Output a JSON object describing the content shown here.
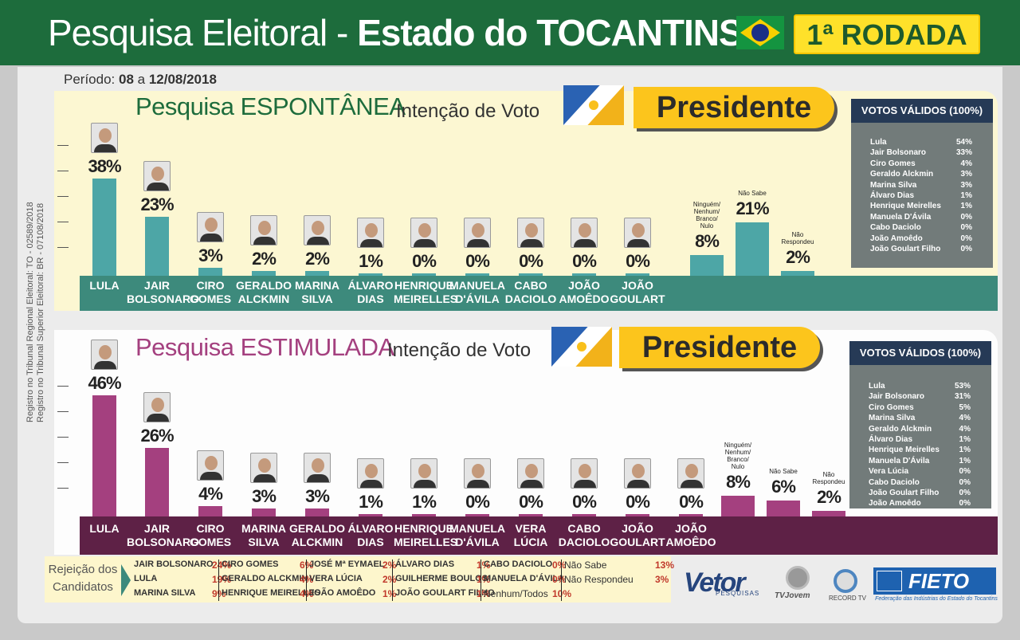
{
  "header": {
    "title_a": "Pesquisa Eleitoral - ",
    "title_b": "Estado do  TOCANTINS",
    "round": "1ª RODADA"
  },
  "periodo": {
    "label": "Período: ",
    "value": "08",
    "mid": " a ",
    "end": "12/08/2018"
  },
  "registro": {
    "line1": "Registro no Tribunal Regional Eleitoral: TO - 02589/2018",
    "line2": "Registro no Tribunal Superior Eleitoral: BR - 07108/2018"
  },
  "colors": {
    "green": "#1d6c3c",
    "teal": "#4da6a6",
    "plum": "#a4407f",
    "band1": "#3d8a7c",
    "band2": "#5e2146"
  },
  "chart_data": [
    {
      "type": "bar",
      "title": "Pesquisa ESPONTÂNEA",
      "subtitle": "Intenção de Voto",
      "office": "Presidente",
      "categories": [
        "LULA",
        "JAIR\nBOLSONARO",
        "CIRO\nGOMES",
        "GERALDO\nALCKMIN",
        "MARINA\nSILVA",
        "ÁLVARO\nDIAS",
        "HENRIQUE\nMEIRELLES",
        "MANUELA\nD'ÁVILA",
        "CABO\nDACIOLO",
        "JOÃO\nAMOÊDO",
        "JOÃO\nGOULART"
      ],
      "values": [
        38,
        23,
        3,
        2,
        2,
        1,
        0,
        0,
        0,
        0,
        0
      ],
      "labels": [
        "38%",
        "23%",
        "3%",
        "2%",
        "2%",
        "1%",
        "0%",
        "0%",
        "0%",
        "0%",
        "0%"
      ],
      "others": [
        {
          "name": "Ninguém/\nNenhum/\nBranco/\nNulo",
          "value": 8,
          "label": "8%"
        },
        {
          "name": "Não Sabe",
          "value": 21,
          "label": "21%"
        },
        {
          "name": "Não\nRespondeu",
          "value": 2,
          "label": "2%"
        }
      ],
      "validos": {
        "title": "VOTOS VÁLIDOS (100%)",
        "rows": [
          [
            "Lula",
            "54%"
          ],
          [
            "Jair Bolsonaro",
            "33%"
          ],
          [
            "Ciro Gomes",
            "4%"
          ],
          [
            "Geraldo Alckmin",
            "3%"
          ],
          [
            "Marina Silva",
            "3%"
          ],
          [
            "Álvaro Dias",
            "1%"
          ],
          [
            "Henrique Meirelles",
            "1%"
          ],
          [
            "Manuela D'Ávila",
            "0%"
          ],
          [
            "Cabo Daciolo",
            "0%"
          ],
          [
            "João Amoêdo",
            "0%"
          ],
          [
            "João Goulart Filho",
            "0%"
          ]
        ]
      }
    },
    {
      "type": "bar",
      "title": "Pesquisa ESTIMULADA",
      "subtitle": "Intenção de Voto",
      "office": "Presidente",
      "categories": [
        "LULA",
        "JAIR\nBOLSONARO",
        "CIRO\nGOMES",
        "MARINA\nSILVA",
        "GERALDO\nALCKMIN",
        "ÁLVARO\nDIAS",
        "HENRIQUE\nMEIRELLES",
        "MANUELA\nD'ÁVILA",
        "VERA\nLÚCIA",
        "CABO\nDACIOLO",
        "JOÃO\nGOULART",
        "JOÃO\nAMOÊDO"
      ],
      "values": [
        46,
        26,
        4,
        3,
        3,
        1,
        1,
        0,
        0,
        0,
        0,
        0
      ],
      "labels": [
        "46%",
        "26%",
        "4%",
        "3%",
        "3%",
        "1%",
        "1%",
        "0%",
        "0%",
        "0%",
        "0%",
        "0%"
      ],
      "others": [
        {
          "name": "Ninguém/\nNenhum/\nBranco/\nNulo",
          "value": 8,
          "label": "8%"
        },
        {
          "name": "Não Sabe",
          "value": 6,
          "label": "6%"
        },
        {
          "name": "Não\nRespondeu",
          "value": 2,
          "label": "2%"
        }
      ],
      "validos": {
        "title": "VOTOS VÁLIDOS (100%)",
        "rows": [
          [
            "Lula",
            "53%"
          ],
          [
            "Jair Bolsonaro",
            "31%"
          ],
          [
            "Ciro Gomes",
            "5%"
          ],
          [
            "Marina Silva",
            "4%"
          ],
          [
            "Geraldo Alckmin",
            "4%"
          ],
          [
            "Álvaro Dias",
            "1%"
          ],
          [
            "Henrique Meirelles",
            "1%"
          ],
          [
            "Manuela D'Ávila",
            "1%"
          ],
          [
            "Vera Lúcia",
            "0%"
          ],
          [
            "Cabo Daciolo",
            "0%"
          ],
          [
            "João Goulart Filho",
            "0%"
          ],
          [
            "João Amoêdo",
            "0%"
          ]
        ]
      }
    }
  ],
  "rejeicao": {
    "label": "Rejeição dos\nCandidatos",
    "columns": [
      [
        [
          "JAIR BOLSONARO",
          "24%"
        ],
        [
          "LULA",
          "19%"
        ],
        [
          "MARINA SILVA",
          "9%"
        ]
      ],
      [
        [
          "CIRO GOMES",
          "6%"
        ],
        [
          "GERALDO ALCKMIN",
          "4%"
        ],
        [
          "HENRIQUE MEIRELLES",
          "4%"
        ]
      ],
      [
        [
          "JOSÉ Mª EYMAEL",
          "2%"
        ],
        [
          "VERA LÚCIA",
          "2%"
        ],
        [
          "JOÃO AMOÊDO",
          "1%"
        ]
      ],
      [
        [
          "ÁLVARO DIAS",
          "1%"
        ],
        [
          "GUILHERME BOULOS",
          "1%"
        ],
        [
          "JOÃO GOULART FILHO",
          "1%"
        ]
      ],
      [
        [
          "CABO DACIOLO",
          "0%"
        ],
        [
          "MANUELA D'ÁVILA",
          "0%"
        ],
        [
          "Nenhum/Todos",
          "10%"
        ]
      ],
      [
        [
          "Não Sabe",
          "13%"
        ],
        [
          "Não Respondeu",
          "3%"
        ]
      ]
    ]
  },
  "logos": {
    "vetor": "Vetor",
    "vetor_sub": "PESQUISAS",
    "tv": "TVJovem",
    "record": "RECORD TV",
    "fieto": "FIETO",
    "fieto_sub": "Federação das Indústrias do Estado do Tocantins"
  }
}
